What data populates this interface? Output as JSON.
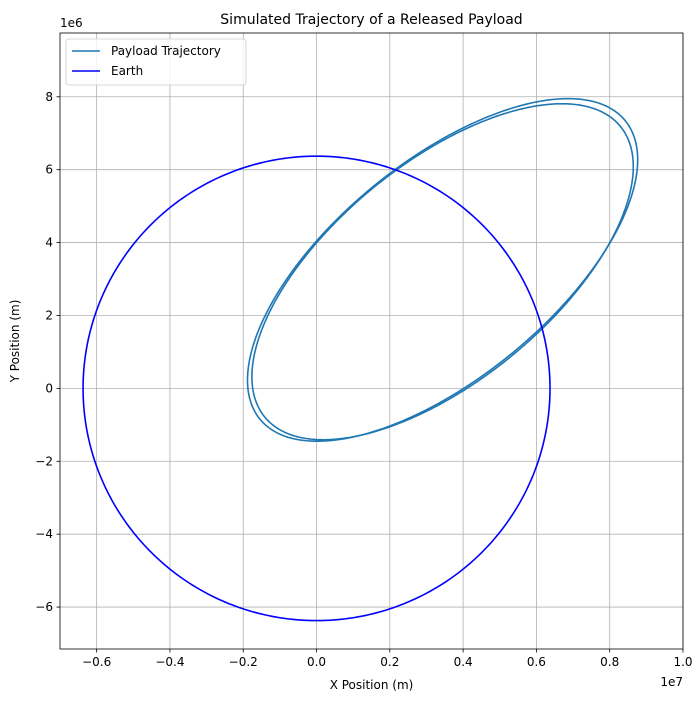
{
  "chart_data": {
    "type": "line",
    "title": "Simulated Trajectory of a Released Payload",
    "xlabel": "X Position (m)",
    "ylabel": "Y Position (m)",
    "x_offset_label": "1e7",
    "y_offset_label": "1e6",
    "x_scale": 10000000,
    "y_scale": 1000000,
    "xlim": [
      -0.7,
      1.0
    ],
    "ylim": [
      -7.15,
      9.75
    ],
    "x_ticks": [
      -0.6,
      -0.4,
      -0.2,
      0.0,
      0.2,
      0.4,
      0.6,
      0.8,
      1.0
    ],
    "x_tick_labels": [
      "−0.6",
      "−0.4",
      "−0.2",
      "0.0",
      "0.2",
      "0.4",
      "0.6",
      "0.8",
      "1.0"
    ],
    "y_ticks": [
      -6,
      -4,
      -2,
      0,
      2,
      4,
      6,
      8
    ],
    "y_tick_labels": [
      "−6",
      "−4",
      "−2",
      "0",
      "2",
      "4",
      "6",
      "8"
    ],
    "grid": true,
    "legend_position": "top-left",
    "series": [
      {
        "name": "Payload Trajectory",
        "color": "#1f77b4",
        "curve": "ellipse",
        "orbits": [
          {
            "center": [
              0.344,
              3.25
            ],
            "a": 0.645,
            "b": 0.297,
            "angle_deg": 39.5
          },
          {
            "center": [
              0.344,
              3.2
            ],
            "a": 0.628,
            "b": 0.298,
            "angle_deg": 39.5
          }
        ]
      },
      {
        "name": "Earth",
        "color": "#0000ff",
        "curve": "circle",
        "center": [
          0.0,
          0.0
        ],
        "radius_x": 0.6371,
        "radius_y": 6.371
      }
    ]
  }
}
